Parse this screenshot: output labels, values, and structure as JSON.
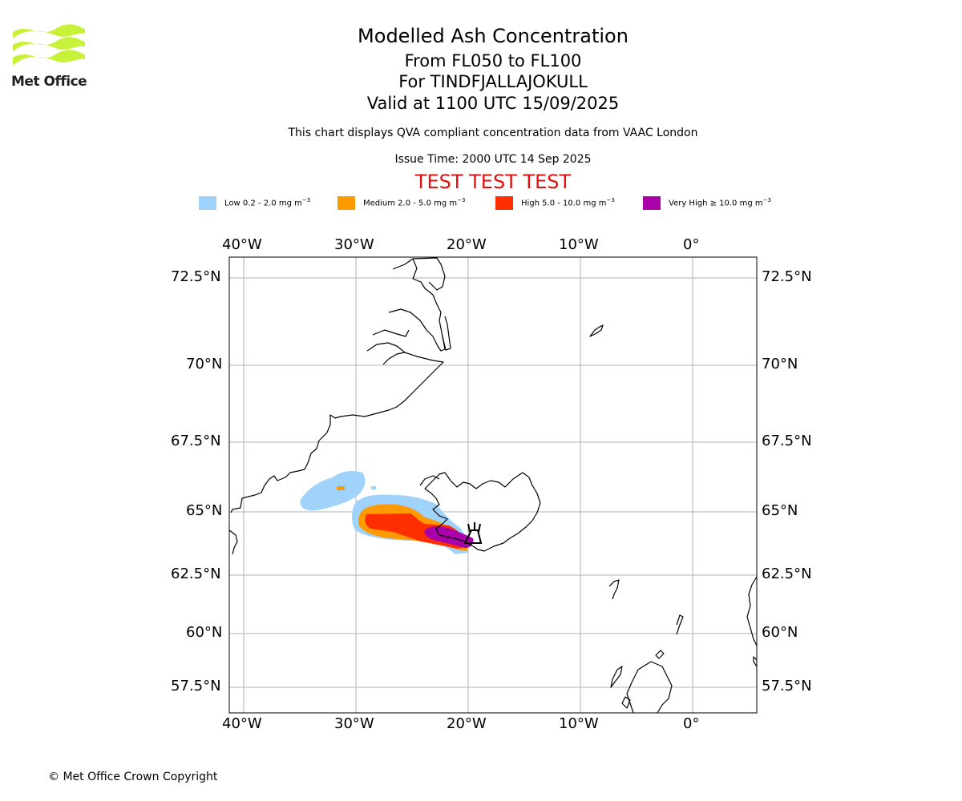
{
  "header": {
    "logo_text": "Met Office",
    "title": "Modelled Ash Concentration",
    "levels": "From FL050 to FL100",
    "volcano": "For TINDFJALLAJOKULL",
    "valid": "Valid at 1100 UTC 15/09/2025",
    "compliance": "This chart displays QVA compliant concentration data from VAAC London",
    "issue_time": "Issue Time: 2000 UTC 14 Sep 2025",
    "test_banner": "TEST TEST TEST"
  },
  "legend": [
    {
      "label": "Low 0.2 - 2.0 mg m",
      "sup": "−3",
      "color": "#9fd3fb"
    },
    {
      "label": "Medium 2.0 - 5.0 mg m",
      "sup": "−3",
      "color": "#ff9a00"
    },
    {
      "label": "High 5.0 - 10.0 mg m",
      "sup": "−3",
      "color": "#ff2f00"
    },
    {
      "label": "Very High ≥ 10.0 mg m",
      "sup": "−3",
      "color": "#aa00aa"
    }
  ],
  "map": {
    "lon_ticks": [
      "40°W",
      "30°W",
      "20°W",
      "10°W",
      "0°"
    ],
    "lat_ticks": [
      "72.5°N",
      "70°N",
      "67.5°N",
      "65°N",
      "62.5°N",
      "60°N",
      "57.5°N"
    ],
    "gridlines": true
  },
  "footer": {
    "copyright": "© Met Office Crown Copyright"
  }
}
